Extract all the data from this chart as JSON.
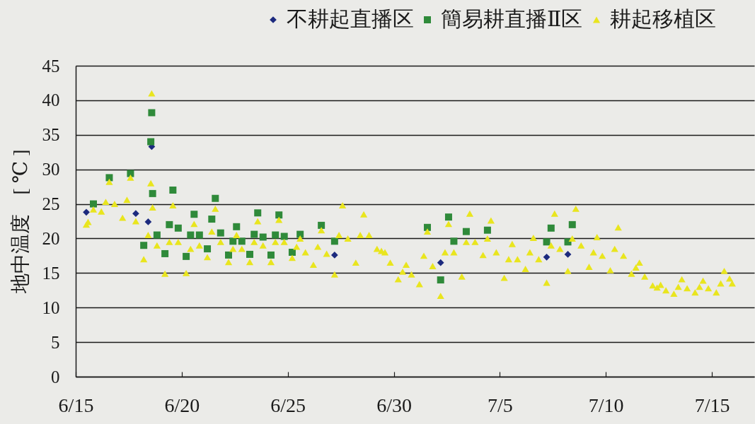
{
  "chart_data": {
    "type": "scatter",
    "ylabel": "地中温度　[ ℃ ]",
    "legend": "top right",
    "grid": "y",
    "xlim": [
      "--06-15",
      "--07-17"
    ],
    "xticks": [
      {
        "value": "--06-15",
        "label": "6/15"
      },
      {
        "value": "--06-20",
        "label": "6/20"
      },
      {
        "value": "--06-25",
        "label": "6/25"
      },
      {
        "value": "--06-30",
        "label": "6/30"
      },
      {
        "value": "--07-05",
        "label": "7/5"
      },
      {
        "value": "--07-10",
        "label": "7/10"
      },
      {
        "value": "--07-15",
        "label": "7/15"
      }
    ],
    "ylim": [
      0,
      45
    ],
    "yticks": [
      0,
      5,
      10,
      15,
      20,
      25,
      30,
      35,
      40,
      45
    ],
    "x": [
      "--06-15T12:00",
      "--06-15T14:00",
      "--06-15T20:00",
      "--06-16T05:00",
      "--06-16T10:00",
      "--06-16T14:00",
      "--06-16T20:00",
      "--06-17T05:00",
      "--06-17T10:00",
      "--06-17T14:00",
      "--06-17T20:00",
      "--06-18T05:00",
      "--06-18T10:00",
      "--06-18T13:00",
      "--06-18T14:00",
      "--06-18T15:00",
      "--06-18T20:00",
      "--06-19T05:00",
      "--06-19T10:00",
      "--06-19T14:00",
      "--06-19T20:00",
      "--06-20T05:00",
      "--06-20T10:00",
      "--06-20T14:00",
      "--06-20T20:00",
      "--06-21T05:00",
      "--06-21T10:00",
      "--06-21T14:00",
      "--06-21T20:00",
      "--06-22T05:00",
      "--06-22T10:00",
      "--06-22T14:00",
      "--06-22T20:00",
      "--06-23T05:00",
      "--06-23T10:00",
      "--06-23T14:00",
      "--06-23T20:00",
      "--06-24T05:00",
      "--06-24T10:00",
      "--06-24T14:00",
      "--06-24T20:00",
      "--06-25T05:00",
      "--06-25T10:00",
      "--06-25T14:00",
      "--06-25T20:00",
      "--06-26T05:00",
      "--06-26T10:00",
      "--06-26T14:00",
      "--06-26T20:00",
      "--06-27T05:00",
      "--06-27T10:00",
      "--06-27T14:00",
      "--06-27T20:00",
      "--06-28T05:00",
      "--06-28T10:00",
      "--06-28T14:00",
      "--06-28T20:00",
      "--06-29T05:00",
      "--06-29T10:00",
      "--06-29T14:00",
      "--06-29T20:00",
      "--06-30T05:00",
      "--06-30T10:00",
      "--06-30T14:00",
      "--06-30T20:00",
      "--07-01T05:00",
      "--07-01T10:00",
      "--07-01T14:00",
      "--07-01T20:00",
      "--07-02T05:00",
      "--07-02T10:00",
      "--07-02T14:00",
      "--07-02T20:00",
      "--07-03T05:00",
      "--07-03T10:00",
      "--07-03T14:00",
      "--07-03T20:00",
      "--07-04T05:00",
      "--07-04T10:00",
      "--07-04T14:00",
      "--07-04T20:00",
      "--07-05T05:00",
      "--07-05T10:00",
      "--07-05T14:00",
      "--07-05T20:00",
      "--07-06T05:00",
      "--07-06T10:00",
      "--07-06T14:00",
      "--07-06T20:00",
      "--07-07T05:00",
      "--07-07T10:00",
      "--07-07T14:00",
      "--07-07T20:00",
      "--07-08T05:00",
      "--07-08T10:00",
      "--07-08T14:00",
      "--07-08T20:00",
      "--07-09T05:00",
      "--07-09T10:00",
      "--07-09T14:00",
      "--07-09T20:00",
      "--07-10T05:00",
      "--07-10T10:00",
      "--07-10T14:00",
      "--07-10T20:00",
      "--07-11T05:00",
      "--07-11T10:00",
      "--07-11T14:00",
      "--07-11T20:00",
      "--07-12T05:00",
      "--07-12T10:00",
      "--07-12T14:00",
      "--07-12T20:00",
      "--07-13T05:00",
      "--07-13T10:00",
      "--07-13T14:00",
      "--07-13T20:00",
      "--07-14T05:00",
      "--07-14T10:00",
      "--07-14T14:00",
      "--07-14T20:00",
      "--07-15T05:00",
      "--07-15T10:00",
      "--07-15T14:00",
      "--07-15T20:00",
      "--07-15T23:00"
    ],
    "series": [
      {
        "name": "不耕起直播区",
        "color": "#1c2a7e",
        "marker": "diamond",
        "values": [
          23.8,
          null,
          null,
          null,
          null,
          null,
          null,
          null,
          null,
          null,
          23.6,
          null,
          22.4,
          null,
          33.3,
          null,
          null,
          null,
          null,
          null,
          null,
          null,
          null,
          null,
          null,
          null,
          null,
          null,
          null,
          null,
          null,
          null,
          null,
          null,
          null,
          null,
          null,
          null,
          null,
          null,
          null,
          null,
          null,
          null,
          null,
          null,
          null,
          null,
          null,
          17.6,
          null,
          null,
          null,
          null,
          null,
          null,
          null,
          null,
          null,
          null,
          null,
          null,
          null,
          null,
          null,
          null,
          null,
          null,
          null,
          16.5,
          null,
          null,
          null,
          null,
          null,
          null,
          null,
          null,
          null,
          null,
          null,
          null,
          null,
          null,
          null,
          null,
          null,
          null,
          null,
          17.3,
          null,
          null,
          null,
          17.7,
          null,
          null,
          null,
          null,
          null,
          null,
          null,
          null,
          null,
          null,
          null,
          null,
          null,
          null,
          null,
          null,
          null,
          null,
          null,
          null,
          null,
          null,
          null,
          null,
          null,
          null,
          null,
          null,
          null,
          null,
          null,
          null
        ]
      },
      {
        "name": "簡易耕直播Ⅱ区",
        "color": "#2f8a3a",
        "marker": "square",
        "values": [
          null,
          null,
          25.0,
          null,
          null,
          28.8,
          null,
          null,
          null,
          29.4,
          null,
          19.0,
          null,
          34.0,
          38.2,
          26.5,
          20.5,
          17.8,
          22.0,
          27.0,
          21.5,
          17.4,
          20.5,
          23.5,
          20.5,
          18.5,
          22.8,
          25.8,
          20.8,
          17.6,
          19.6,
          21.7,
          19.6,
          17.7,
          20.6,
          23.7,
          20.2,
          17.6,
          20.5,
          23.4,
          20.3,
          18.0,
          null,
          20.6,
          null,
          null,
          null,
          21.9,
          null,
          19.6,
          null,
          null,
          null,
          null,
          null,
          null,
          null,
          null,
          null,
          null,
          null,
          null,
          null,
          null,
          null,
          null,
          null,
          21.6,
          null,
          14.0,
          null,
          23.1,
          19.6,
          null,
          21.0,
          null,
          null,
          null,
          21.2,
          null,
          null,
          null,
          null,
          null,
          null,
          null,
          null,
          null,
          null,
          19.5,
          21.5,
          null,
          null,
          19.5,
          22.0,
          null,
          null,
          null,
          null,
          null,
          null,
          null,
          null,
          null,
          null,
          null,
          null,
          null,
          null,
          null,
          null,
          null,
          null,
          null,
          null,
          null,
          null,
          null,
          null,
          null,
          null,
          null,
          null,
          null,
          null,
          null
        ]
      },
      {
        "name": "耕起移植区",
        "color": "#e9e51e",
        "marker": "triangle",
        "values": [
          22.0,
          22.4,
          24.2,
          23.9,
          25.3,
          28.2,
          25.0,
          23.0,
          25.6,
          28.8,
          22.5,
          17.0,
          20.5,
          28.0,
          41.0,
          24.5,
          19.0,
          14.9,
          19.5,
          24.8,
          19.5,
          15.0,
          18.5,
          22.1,
          19.0,
          17.3,
          21.0,
          24.3,
          19.5,
          16.6,
          18.5,
          20.5,
          18.5,
          16.6,
          19.5,
          22.5,
          19.0,
          16.6,
          19.5,
          22.7,
          19.5,
          17.2,
          18.8,
          20.0,
          18.0,
          16.2,
          18.8,
          21.2,
          17.8,
          14.8,
          20.5,
          24.8,
          20.0,
          16.5,
          20.5,
          23.5,
          20.5,
          18.5,
          18.2,
          18.0,
          16.5,
          14.1,
          15.2,
          16.2,
          14.8,
          13.4,
          17.5,
          21.0,
          16.0,
          11.7,
          18.0,
          22.1,
          18.0,
          14.5,
          19.5,
          23.6,
          19.5,
          17.6,
          20.0,
          22.6,
          18.0,
          14.3,
          17.0,
          19.2,
          17.0,
          15.6,
          18.0,
          20.1,
          17.0,
          13.6,
          19.0,
          23.6,
          18.5,
          15.3,
          20.0,
          24.3,
          19.0,
          15.9,
          18.0,
          20.2,
          17.5,
          15.4,
          18.5,
          21.6,
          17.5,
          14.9,
          15.8,
          16.5,
          14.5,
          13.2,
          12.9,
          13.3,
          12.5,
          12.0,
          13.0,
          14.1,
          12.8,
          12.2,
          13.0,
          13.9,
          12.8,
          12.2,
          13.5,
          15.3,
          14.2,
          13.5
        ]
      }
    ]
  }
}
